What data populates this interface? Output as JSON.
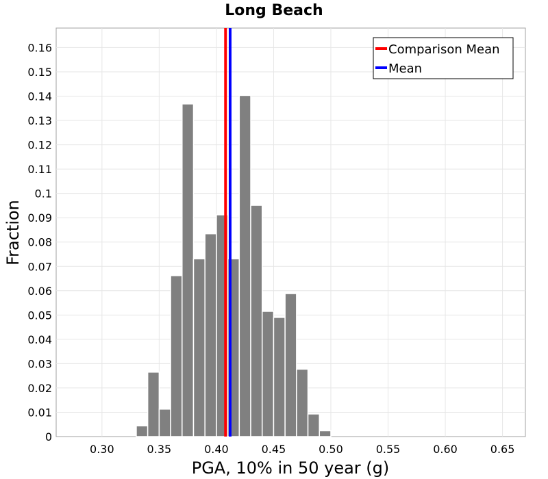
{
  "chart_data": {
    "type": "bar",
    "title": "Long Beach",
    "xlabel": "PGA, 10% in 50 year (g)",
    "ylabel": "Fraction",
    "xlim": [
      0.26,
      0.67
    ],
    "ylim": [
      0,
      0.168
    ],
    "xticks": [
      "0.30",
      "0.35",
      "0.40",
      "0.45",
      "0.50",
      "0.55",
      "0.60",
      "0.65"
    ],
    "yticks": [
      "0",
      "0.01",
      "0.02",
      "0.03",
      "0.04",
      "0.05",
      "0.06",
      "0.07",
      "0.08",
      "0.09",
      "0.1",
      "0.11",
      "0.12",
      "0.13",
      "0.14",
      "0.15",
      "0.16"
    ],
    "grid": true,
    "bin_width": 0.01,
    "bin_starts": [
      0.33,
      0.34,
      0.35,
      0.36,
      0.37,
      0.38,
      0.39,
      0.4,
      0.41,
      0.42,
      0.43,
      0.44,
      0.45,
      0.46,
      0.47,
      0.48,
      0.49
    ],
    "values": [
      0.0044,
      0.0265,
      0.0113,
      0.0662,
      0.1368,
      0.0731,
      0.0834,
      0.0912,
      0.0731,
      0.1403,
      0.0951,
      0.0515,
      0.049,
      0.0588,
      0.0277,
      0.0093,
      0.0024
    ],
    "bar_color": "#808080",
    "vlines": [
      {
        "name": "Comparison Mean",
        "x": 0.408,
        "color": "#ff0000"
      },
      {
        "name": "Mean",
        "x": 0.412,
        "color": "#0000ff"
      }
    ],
    "legend_position": "top-right"
  }
}
